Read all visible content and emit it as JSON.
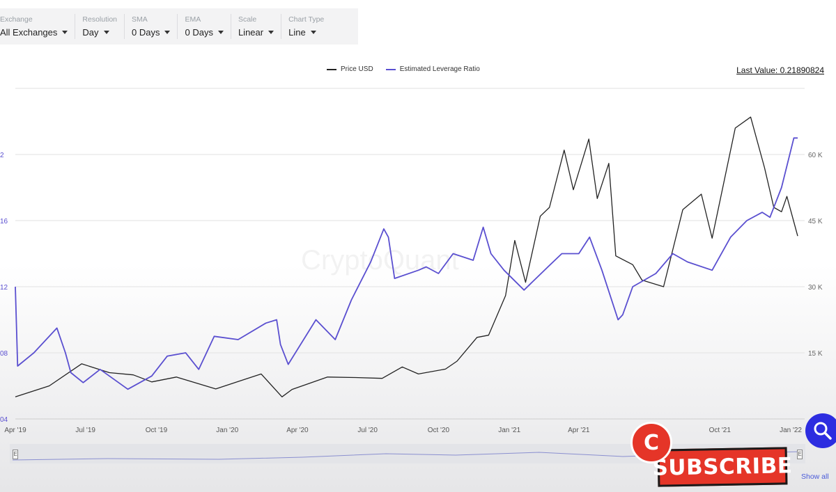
{
  "toolbar": [
    {
      "label": "Exchange",
      "value": "All Exchanges"
    },
    {
      "label": "Resolution",
      "value": "Day"
    },
    {
      "label": "SMA",
      "value": "0 Days"
    },
    {
      "label": "EMA",
      "value": "0 Days"
    },
    {
      "label": "Scale",
      "value": "Linear"
    },
    {
      "label": "Chart Type",
      "value": "Line"
    }
  ],
  "last_value": "Last Value: 0.21890824",
  "watermark": "CryptoQuant",
  "subscribe": {
    "badge": "C",
    "label": "SUBSCRIBE"
  },
  "navigator": {
    "show_all": "Show all",
    "left_handle": "E",
    "right_handle": "E"
  },
  "colors": {
    "price": "#222222",
    "leverage": "#5a4fd0",
    "grid": "#e2e2e2",
    "subscribe": "#e53528",
    "zoom": "#2d2de0"
  },
  "icons": {
    "zoom": "search-icon",
    "badge": "c-logo-icon"
  },
  "chart_data": {
    "type": "line",
    "title": "",
    "x": [
      "Apr '19",
      "Jul '19",
      "Oct '19",
      "Jan '20",
      "Apr '20",
      "Jul '20",
      "Oct '20",
      "Jan '21",
      "Apr '21",
      "Jan '22"
    ],
    "x_ticks": [
      "Apr '19",
      "Jul '19",
      "Oct '19",
      "Jan '20",
      "Apr '20",
      "Jul '20",
      "Oct '20",
      "Jan '21",
      "Apr '21",
      "Oct '21",
      "Jan '22"
    ],
    "x_range": [
      "2019-04-01",
      "2022-01-10"
    ],
    "y_left_ticks": [
      "04",
      "08",
      "12",
      "16",
      "2"
    ],
    "y_right_ticks": [
      "15 K",
      "30 K",
      "45 K",
      "60 K"
    ],
    "ylim_right": [
      0,
      75000
    ],
    "ylim_left": [
      0.04,
      0.24
    ],
    "grid": true,
    "legend_position": "top-center",
    "series": [
      {
        "name": "Price USD",
        "axis": "right",
        "points": [
          [
            "2019-04-01",
            5000
          ],
          [
            "2019-05-15",
            7500
          ],
          [
            "2019-06-26",
            12500
          ],
          [
            "2019-08-01",
            10500
          ],
          [
            "2019-09-01",
            10000
          ],
          [
            "2019-09-25",
            8400
          ],
          [
            "2019-10-27",
            9500
          ],
          [
            "2019-12-17",
            6800
          ],
          [
            "2020-01-15",
            8500
          ],
          [
            "2020-02-14",
            10200
          ],
          [
            "2020-03-12",
            5000
          ],
          [
            "2020-03-25",
            6700
          ],
          [
            "2020-05-10",
            9500
          ],
          [
            "2020-06-15",
            9400
          ],
          [
            "2020-07-20",
            9200
          ],
          [
            "2020-08-15",
            11800
          ],
          [
            "2020-09-05",
            10200
          ],
          [
            "2020-10-10",
            11300
          ],
          [
            "2020-10-25",
            13100
          ],
          [
            "2020-11-20",
            18500
          ],
          [
            "2020-12-05",
            19000
          ],
          [
            "2020-12-27",
            28000
          ],
          [
            "2021-01-08",
            40500
          ],
          [
            "2021-01-22",
            31000
          ],
          [
            "2021-02-10",
            46000
          ],
          [
            "2021-02-22",
            48000
          ],
          [
            "2021-03-13",
            61000
          ],
          [
            "2021-03-25",
            52000
          ],
          [
            "2021-04-14",
            63500
          ],
          [
            "2021-04-25",
            50000
          ],
          [
            "2021-05-10",
            58000
          ],
          [
            "2021-05-19",
            37000
          ],
          [
            "2021-06-10",
            35000
          ],
          [
            "2021-06-22",
            31500
          ],
          [
            "2021-07-20",
            30000
          ],
          [
            "2021-08-14",
            47500
          ],
          [
            "2021-09-07",
            51000
          ],
          [
            "2021-09-21",
            41000
          ],
          [
            "2021-10-21",
            66000
          ],
          [
            "2021-11-10",
            68500
          ],
          [
            "2021-11-28",
            57000
          ],
          [
            "2021-12-10",
            48000
          ],
          [
            "2021-12-20",
            47000
          ],
          [
            "2021-12-27",
            50500
          ],
          [
            "2022-01-10",
            41500
          ]
        ]
      },
      {
        "name": "Estimated Leverage Ratio",
        "axis": "left",
        "points": [
          [
            "2019-04-01",
            0.12
          ],
          [
            "2019-04-04",
            0.072
          ],
          [
            "2019-04-25",
            0.08
          ],
          [
            "2019-05-25",
            0.095
          ],
          [
            "2019-06-05",
            0.08
          ],
          [
            "2019-06-12",
            0.068
          ],
          [
            "2019-06-28",
            0.062
          ],
          [
            "2019-07-20",
            0.07
          ],
          [
            "2019-08-25",
            0.058
          ],
          [
            "2019-09-25",
            0.066
          ],
          [
            "2019-10-15",
            0.078
          ],
          [
            "2019-11-08",
            0.08
          ],
          [
            "2019-11-25",
            0.07
          ],
          [
            "2019-12-15",
            0.09
          ],
          [
            "2020-01-15",
            0.088
          ],
          [
            "2020-02-20",
            0.098
          ],
          [
            "2020-03-05",
            0.1
          ],
          [
            "2020-03-10",
            0.085
          ],
          [
            "2020-03-20",
            0.073
          ],
          [
            "2020-04-25",
            0.1
          ],
          [
            "2020-05-20",
            0.088
          ],
          [
            "2020-06-10",
            0.112
          ],
          [
            "2020-07-05",
            0.135
          ],
          [
            "2020-07-22",
            0.155
          ],
          [
            "2020-07-28",
            0.15
          ],
          [
            "2020-08-05",
            0.125
          ],
          [
            "2020-09-05",
            0.13
          ],
          [
            "2020-09-15",
            0.132
          ],
          [
            "2020-10-01",
            0.128
          ],
          [
            "2020-10-20",
            0.14
          ],
          [
            "2020-11-15",
            0.136
          ],
          [
            "2020-11-28",
            0.156
          ],
          [
            "2020-12-08",
            0.14
          ],
          [
            "2020-12-25",
            0.13
          ],
          [
            "2021-01-20",
            0.118
          ],
          [
            "2021-02-20",
            0.132
          ],
          [
            "2021-03-10",
            0.14
          ],
          [
            "2021-04-01",
            0.14
          ],
          [
            "2021-04-15",
            0.15
          ],
          [
            "2021-05-01",
            0.13
          ],
          [
            "2021-05-22",
            0.1
          ],
          [
            "2021-05-28",
            0.103
          ],
          [
            "2021-06-10",
            0.12
          ],
          [
            "2021-07-10",
            0.128
          ],
          [
            "2021-08-01",
            0.14
          ],
          [
            "2021-08-20",
            0.135
          ],
          [
            "2021-09-21",
            0.13
          ],
          [
            "2021-10-15",
            0.15
          ],
          [
            "2021-11-05",
            0.16
          ],
          [
            "2021-11-25",
            0.165
          ],
          [
            "2021-12-05",
            0.162
          ],
          [
            "2021-12-20",
            0.18
          ],
          [
            "2022-01-05",
            0.21
          ],
          [
            "2022-01-10",
            0.21
          ]
        ]
      }
    ]
  }
}
